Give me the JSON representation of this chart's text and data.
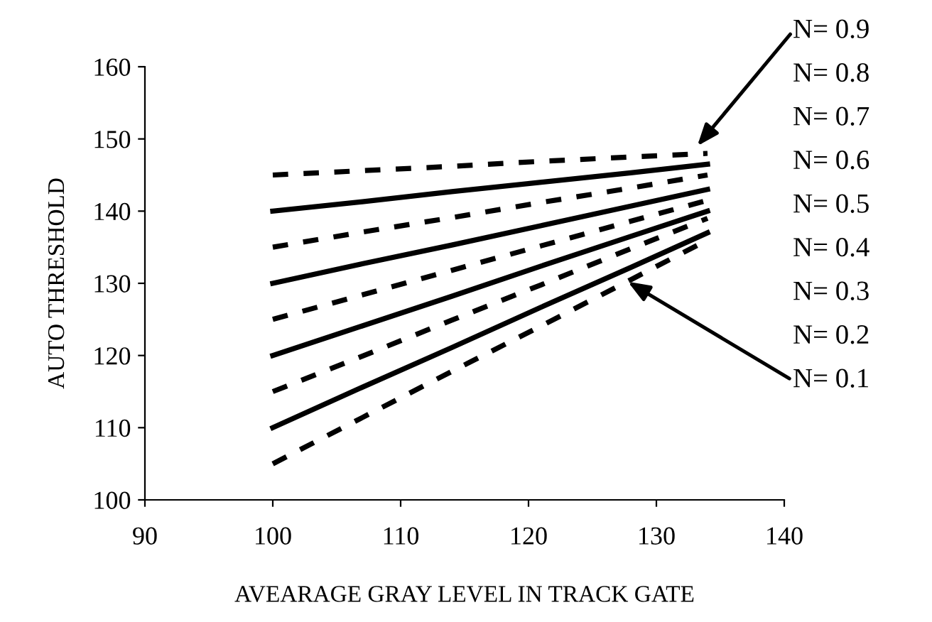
{
  "chart_data": {
    "type": "line",
    "xlabel": "AVEARAGE GRAY LEVEL IN TRACK GATE",
    "ylabel": "AUTO THRESHOLD",
    "x": [
      100,
      107,
      114,
      121,
      128,
      134
    ],
    "xlim": [
      90,
      140
    ],
    "xticks": [
      90,
      100,
      110,
      120,
      130,
      140
    ],
    "ylim": [
      100,
      160
    ],
    "yticks": [
      100,
      110,
      120,
      130,
      140,
      150,
      160
    ],
    "grid": false,
    "legend": "right",
    "marker": "none",
    "series": [
      {
        "name": "N= 0.9",
        "color": "#000000",
        "line_style": "dashed",
        "values": [
          145,
          145.6,
          146.2,
          146.9,
          147.5,
          148
        ]
      },
      {
        "name": "N= 0.8",
        "color": "#000000",
        "line_style": "solid",
        "values": [
          140,
          141.3,
          142.7,
          144,
          145.3,
          146.5
        ]
      },
      {
        "name": "N= 0.7",
        "color": "#000000",
        "line_style": "dashed",
        "values": [
          135,
          137.1,
          139.1,
          141.2,
          143.2,
          145
        ]
      },
      {
        "name": "N= 0.6",
        "color": "#000000",
        "line_style": "solid",
        "values": [
          130,
          132.7,
          135.3,
          138,
          140.7,
          143
        ]
      },
      {
        "name": "N= 0.5",
        "color": "#000000",
        "line_style": "dashed",
        "values": [
          125,
          128.4,
          131.8,
          135.2,
          138.6,
          141.5
        ]
      },
      {
        "name": "N= 0.4",
        "color": "#000000",
        "line_style": "solid",
        "values": [
          120,
          124.1,
          128.2,
          132.4,
          136.5,
          140
        ]
      },
      {
        "name": "N= 0.3",
        "color": "#000000",
        "line_style": "dashed",
        "values": [
          115,
          119.9,
          124.9,
          129.8,
          134.8,
          139
        ]
      },
      {
        "name": "N= 0.2",
        "color": "#000000",
        "line_style": "solid",
        "values": [
          110,
          115.6,
          121.1,
          126.7,
          132.2,
          137
        ]
      },
      {
        "name": "N= 0.1",
        "color": "#000000",
        "line_style": "dashed",
        "values": [
          105,
          111.4,
          117.8,
          124.1,
          130.5,
          136
        ]
      }
    ]
  }
}
